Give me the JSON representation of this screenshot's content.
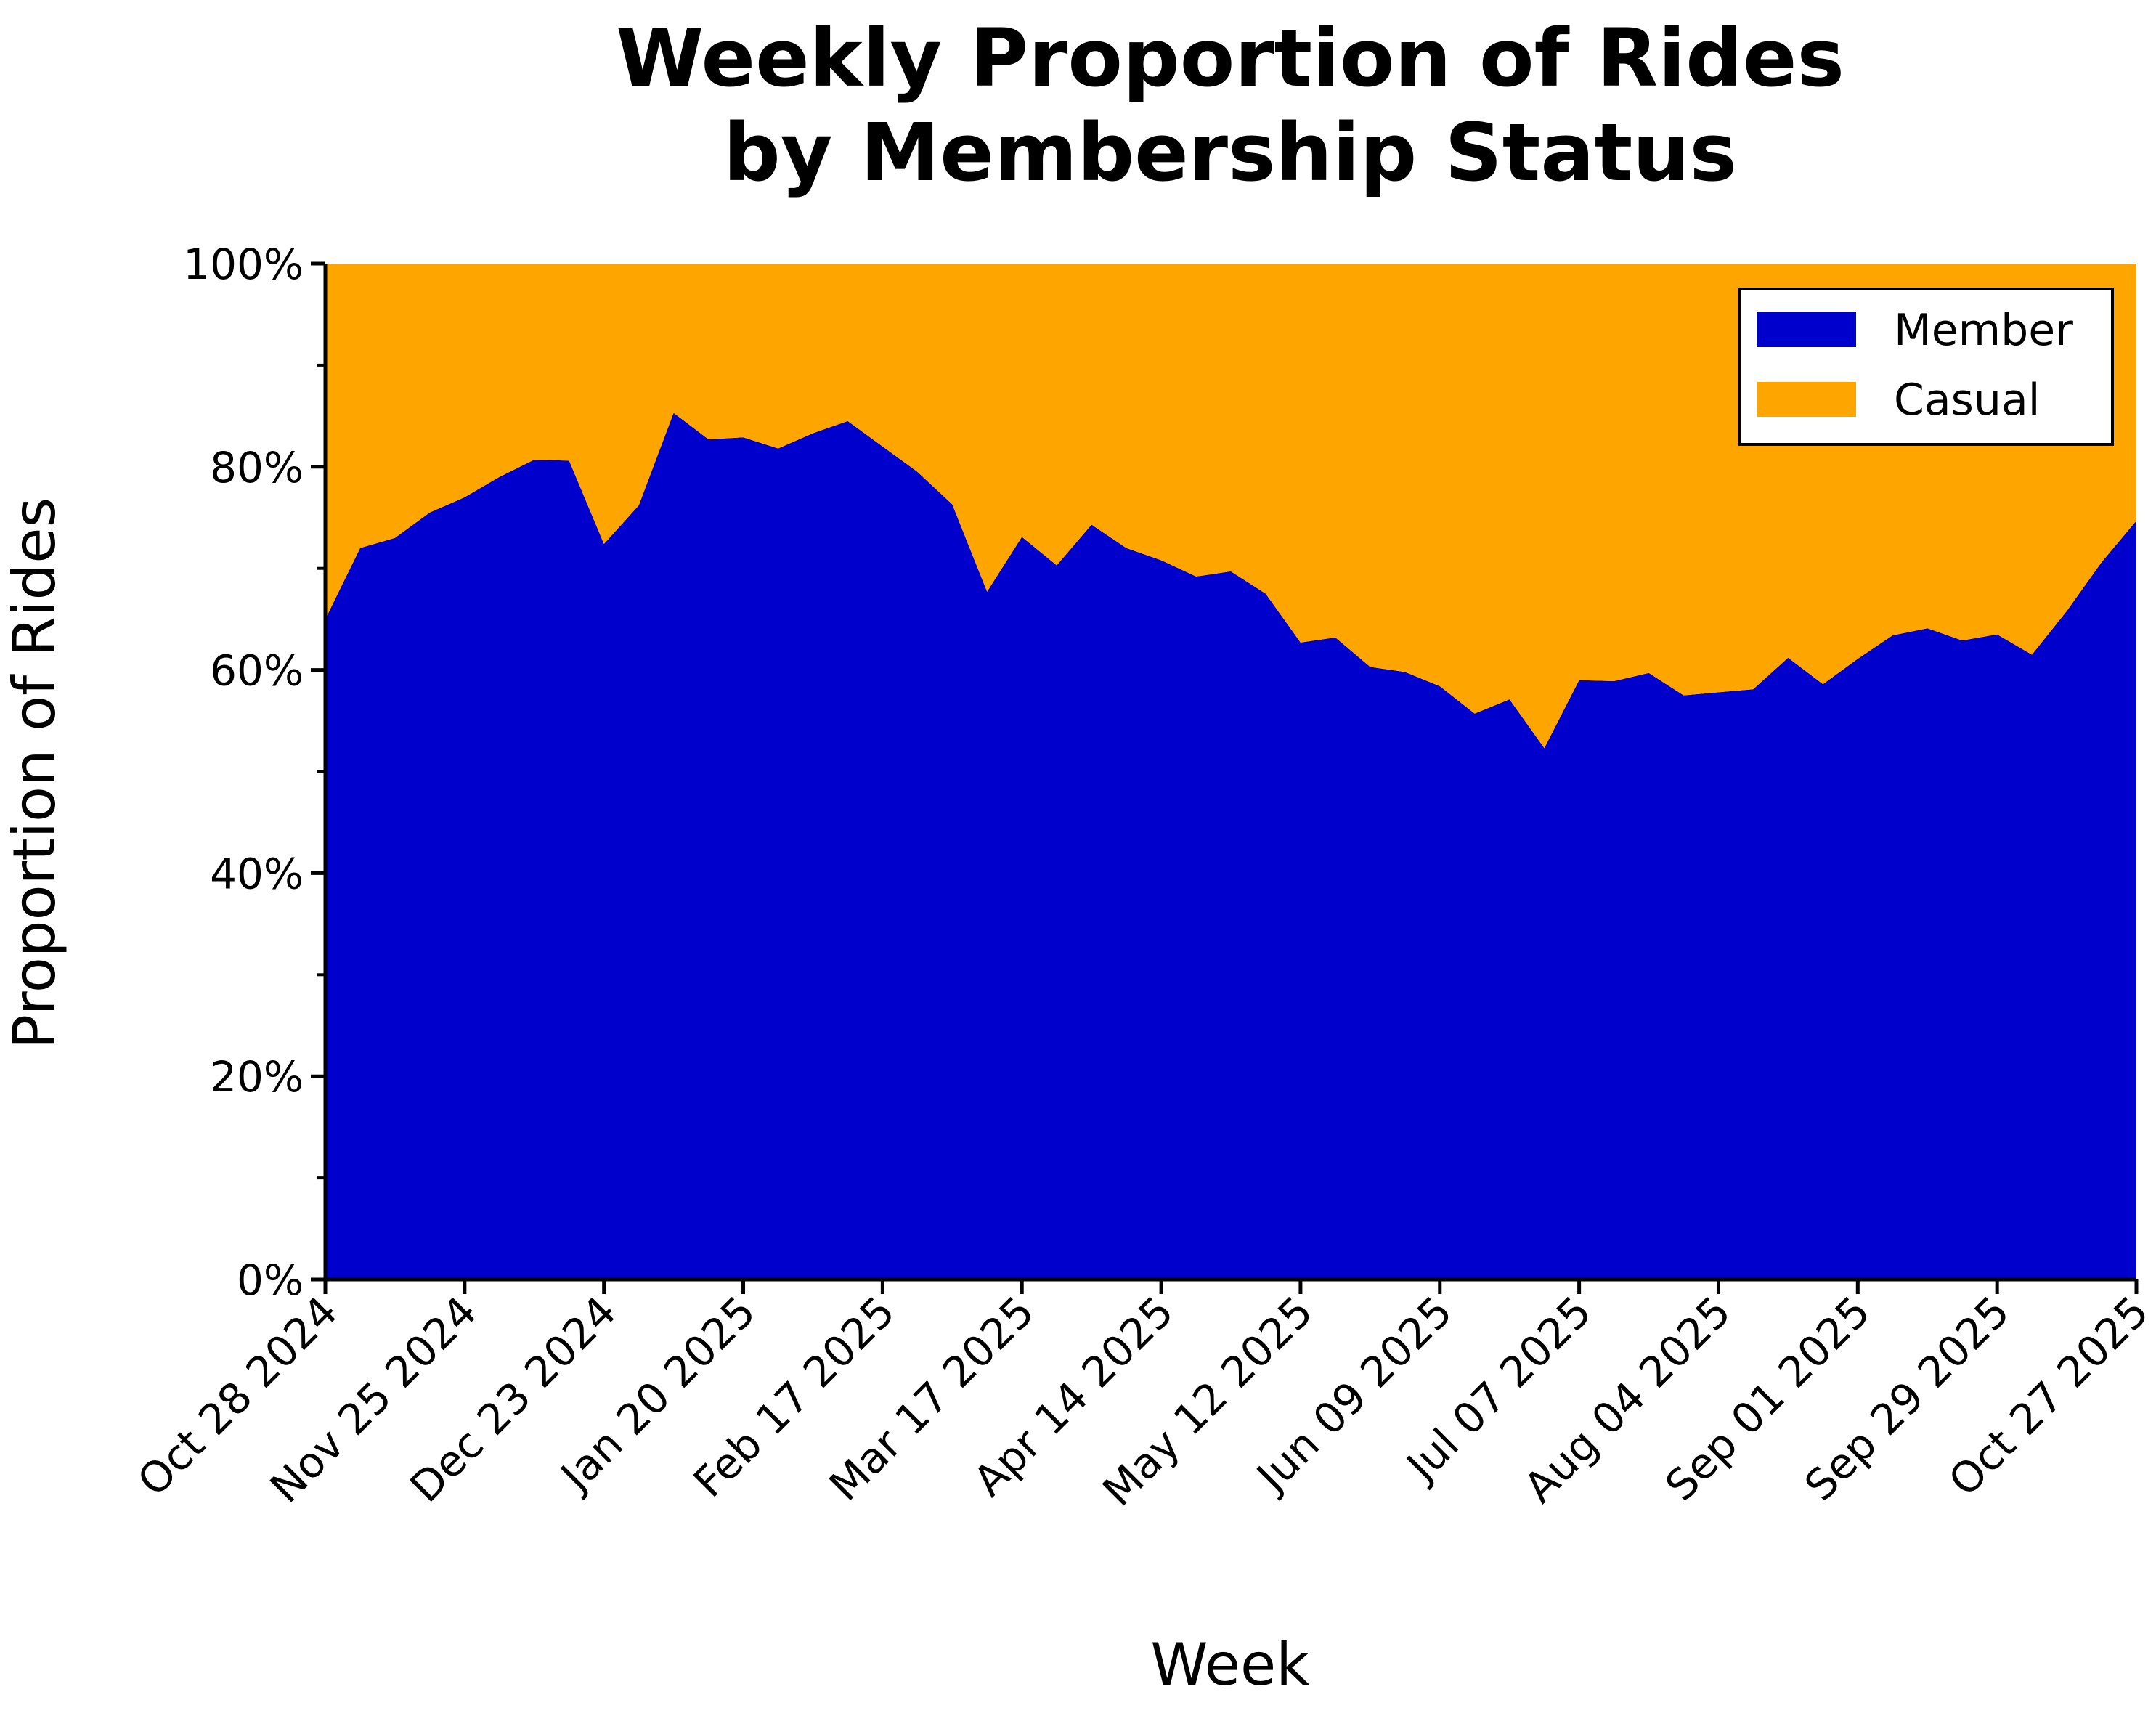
{
  "chart_data": {
    "type": "area",
    "stacked": "percent",
    "title_lines": [
      "Weekly Proportion of Rides",
      "by Membership Status"
    ],
    "xlabel": "Week",
    "ylabel": "Proportion of Rides",
    "ylim": [
      0,
      1
    ],
    "y_ticks": [
      0,
      0.2,
      0.4,
      0.6,
      0.8,
      1.0
    ],
    "y_tick_labels": [
      "0%",
      "20%",
      "40%",
      "60%",
      "80%",
      "100%"
    ],
    "x_tick_labels": [
      "Oct 28 2024",
      "Nov 25 2024",
      "Dec 23 2024",
      "Jan 20 2025",
      "Feb 17 2025",
      "Mar 17 2025",
      "Apr 14 2025",
      "May 12 2025",
      "Jun 09 2025",
      "Jul 07 2025",
      "Aug 04 2025",
      "Sep 01 2025",
      "Sep 29 2025",
      "Oct 27 2025"
    ],
    "legend_position": "top-right",
    "grid": false,
    "series": [
      {
        "name": "Member",
        "color": "#0000cd",
        "values": [
          0.65,
          0.72,
          0.73,
          0.755,
          0.77,
          0.79,
          0.807,
          0.806,
          0.724,
          0.762,
          0.853,
          0.827,
          0.829,
          0.818,
          0.833,
          0.845,
          0.82,
          0.795,
          0.763,
          0.677,
          0.731,
          0.703,
          0.743,
          0.72,
          0.708,
          0.692,
          0.697,
          0.675,
          0.627,
          0.632,
          0.603,
          0.598,
          0.584,
          0.557,
          0.571,
          0.523,
          0.59,
          0.589,
          0.597,
          0.575,
          0.578,
          0.581,
          0.612,
          0.586,
          0.611,
          0.634,
          0.641,
          0.629,
          0.635,
          0.615,
          0.658,
          0.706,
          0.747
        ]
      },
      {
        "name": "Casual",
        "color": "#ffa500",
        "values": [
          0.35,
          0.28,
          0.27,
          0.245,
          0.23,
          0.21,
          0.193,
          0.194,
          0.276,
          0.238,
          0.147,
          0.173,
          0.171,
          0.182,
          0.167,
          0.155,
          0.18,
          0.205,
          0.237,
          0.323,
          0.269,
          0.297,
          0.257,
          0.28,
          0.292,
          0.308,
          0.303,
          0.325,
          0.373,
          0.368,
          0.397,
          0.402,
          0.416,
          0.443,
          0.429,
          0.477,
          0.41,
          0.411,
          0.403,
          0.425,
          0.422,
          0.419,
          0.388,
          0.414,
          0.389,
          0.366,
          0.359,
          0.371,
          0.365,
          0.385,
          0.342,
          0.294,
          0.253
        ]
      }
    ]
  }
}
